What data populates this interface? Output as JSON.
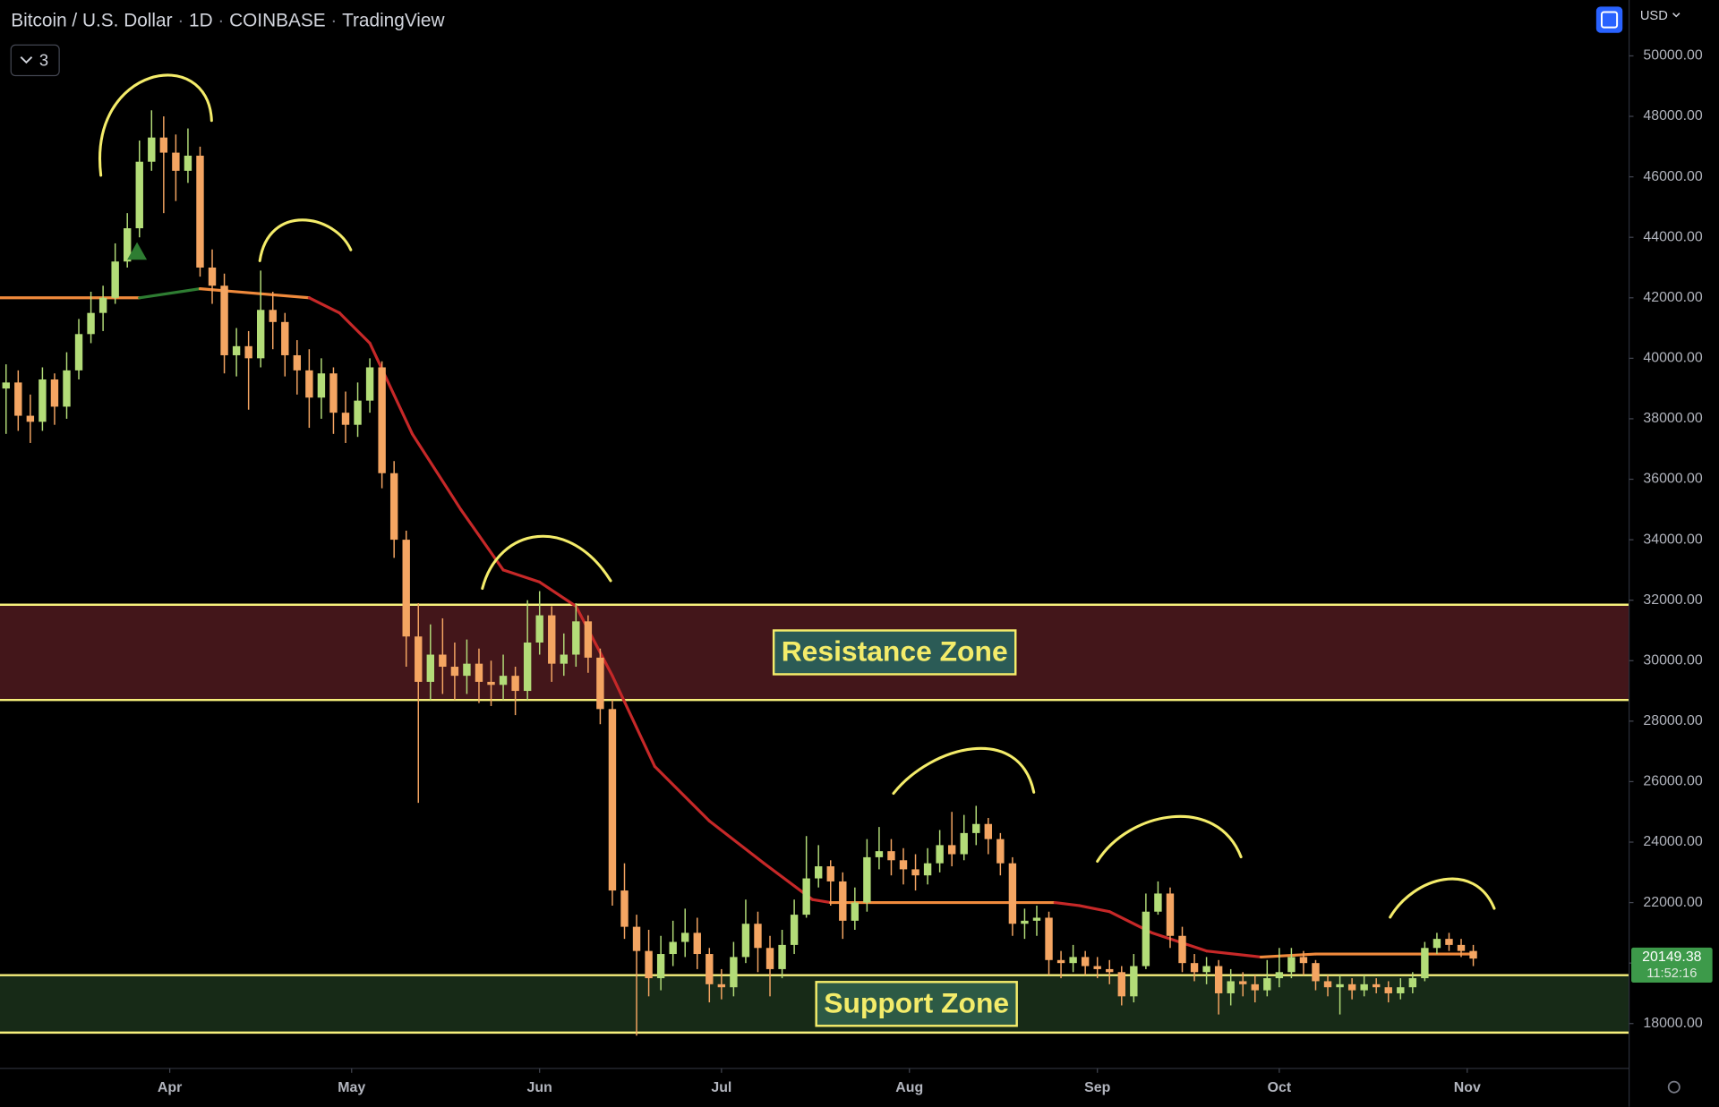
{
  "chart_data": {
    "type": "candlestick",
    "symbol": "Bitcoin / U.S. Dollar",
    "interval": "1D",
    "exchange": "COINBASE",
    "source": "TradingView",
    "badge": "3",
    "currency": "USD",
    "countdown": "11:52:16",
    "up_color": "#b3dc78",
    "down_color": "#f4a562",
    "x": [
      1,
      3,
      5,
      7,
      9,
      11,
      13,
      15,
      17,
      19,
      21,
      23,
      25,
      27,
      29,
      31,
      33,
      35,
      37,
      39,
      41,
      43,
      45,
      47,
      49,
      51,
      53,
      55,
      57,
      59,
      61,
      63,
      65,
      67,
      69,
      71,
      73,
      75,
      77,
      79,
      81,
      83,
      85,
      87,
      89,
      91,
      93,
      95,
      97,
      99,
      101,
      103,
      105,
      107,
      109,
      111,
      113,
      115,
      117,
      119,
      121,
      123,
      125,
      127,
      129,
      131,
      133,
      135,
      137,
      139,
      141,
      143,
      145,
      147,
      149,
      151,
      153,
      155,
      157,
      159,
      161,
      163,
      165,
      167,
      169,
      171,
      173,
      175,
      177,
      179,
      181,
      183,
      185,
      187,
      189,
      191,
      193,
      195,
      197,
      199,
      201,
      203,
      205,
      207,
      209,
      211,
      213,
      215,
      217,
      219,
      221,
      223,
      225,
      227,
      229,
      231,
      233,
      235,
      237,
      239,
      241,
      243
    ],
    "open": [
      39000,
      39200,
      38100,
      37900,
      39300,
      38400,
      39600,
      40800,
      41500,
      42000,
      43200,
      44300,
      46500,
      47300,
      46800,
      46200,
      46700,
      43000,
      42400,
      40100,
      40400,
      40000,
      41600,
      41200,
      40100,
      39600,
      38700,
      39500,
      38200,
      37800,
      38600,
      39700,
      36200,
      34000,
      30800,
      29300,
      30200,
      29800,
      29500,
      29900,
      29300,
      29200,
      29500,
      29000,
      30600,
      31500,
      29900,
      30200,
      31300,
      30100,
      28400,
      22400,
      21200,
      20400,
      19500,
      20300,
      20700,
      21000,
      20300,
      19300,
      19200,
      20200,
      21300,
      20500,
      19800,
      20600,
      21600,
      22800,
      23200,
      22700,
      21400,
      22000,
      23500,
      23700,
      23400,
      23100,
      22900,
      23300,
      23900,
      23600,
      24300,
      24600,
      24100,
      23300,
      21300,
      21400,
      21500,
      20100,
      20000,
      20200,
      19900,
      19800,
      19700,
      18900,
      19900,
      21700,
      22300,
      20900,
      20000,
      19700,
      19900,
      19000,
      19400,
      19300,
      19100,
      19500,
      19700,
      20200,
      20000,
      19400,
      19200,
      19300,
      19100,
      19300,
      19200,
      19000,
      19200,
      19500,
      20500,
      20800,
      20600,
      20400
    ],
    "high": [
      39800,
      39600,
      38800,
      39700,
      39500,
      40200,
      41300,
      42200,
      42400,
      43800,
      44800,
      47200,
      48200,
      48000,
      47400,
      47600,
      47000,
      43600,
      42800,
      41000,
      40900,
      42900,
      42200,
      41500,
      40600,
      40300,
      40000,
      39700,
      38900,
      39200,
      40000,
      39900,
      36600,
      34300,
      31900,
      31200,
      31400,
      30600,
      30700,
      30400,
      30000,
      30200,
      29800,
      32000,
      32300,
      31800,
      30900,
      31900,
      31500,
      30400,
      28700,
      23300,
      21600,
      21100,
      20900,
      21400,
      21800,
      21500,
      20500,
      19800,
      20700,
      22100,
      21700,
      20900,
      21100,
      22100,
      24200,
      23900,
      23400,
      23000,
      22500,
      24100,
      24500,
      24100,
      23800,
      23600,
      23800,
      24400,
      25000,
      24900,
      25200,
      24800,
      24300,
      23500,
      21800,
      21900,
      21700,
      20400,
      20600,
      20400,
      20200,
      20100,
      19900,
      20300,
      22300,
      22700,
      22500,
      21200,
      20300,
      20200,
      20100,
      19800,
      19700,
      19600,
      20100,
      20500,
      20500,
      20400,
      20100,
      19600,
      19600,
      19500,
      19600,
      19500,
      19400,
      19500,
      19700,
      20700,
      21000,
      21000,
      20800,
      20600
    ],
    "low": [
      37500,
      37600,
      37200,
      37600,
      37800,
      38000,
      39300,
      40500,
      40900,
      41800,
      43000,
      44000,
      46200,
      44800,
      45200,
      45800,
      42700,
      41800,
      39500,
      39400,
      38300,
      39700,
      40300,
      39400,
      38800,
      37700,
      38000,
      37500,
      37200,
      37400,
      38200,
      35700,
      33400,
      29800,
      25300,
      28700,
      28900,
      28700,
      28900,
      28600,
      28500,
      28700,
      28200,
      28700,
      30200,
      29300,
      29500,
      29800,
      29600,
      27900,
      21900,
      20800,
      17600,
      18900,
      19100,
      19900,
      20200,
      19800,
      18700,
      18800,
      18900,
      20000,
      19700,
      18900,
      19500,
      20300,
      21500,
      22500,
      21900,
      20800,
      21100,
      21700,
      23100,
      22900,
      22600,
      22400,
      22600,
      23000,
      23200,
      23400,
      23900,
      23600,
      22900,
      20900,
      20800,
      20900,
      19600,
      19500,
      19700,
      19600,
      19500,
      19300,
      18600,
      18700,
      19800,
      21600,
      20500,
      19700,
      19400,
      19300,
      18300,
      18600,
      18900,
      18700,
      18900,
      19200,
      19500,
      19600,
      19100,
      18900,
      18300,
      18800,
      18900,
      19000,
      18700,
      18800,
      19000,
      19400,
      20300,
      20400,
      20200,
      19900
    ],
    "close": [
      39200,
      38100,
      37900,
      39300,
      38400,
      39600,
      40800,
      41500,
      42000,
      43200,
      44300,
      46500,
      47300,
      46800,
      46200,
      46700,
      43000,
      42400,
      40100,
      40400,
      40000,
      41600,
      41200,
      40100,
      39600,
      38700,
      39500,
      38200,
      37800,
      38600,
      39700,
      36200,
      34000,
      30800,
      29300,
      30200,
      29800,
      29500,
      29900,
      29300,
      29200,
      29500,
      29000,
      30600,
      31500,
      29900,
      30200,
      31300,
      30100,
      28400,
      22400,
      21200,
      20400,
      19500,
      20300,
      20700,
      21000,
      20300,
      19300,
      19200,
      20200,
      21300,
      20500,
      19800,
      20600,
      21600,
      22800,
      23200,
      22700,
      21400,
      22000,
      23500,
      23700,
      23400,
      23100,
      22900,
      23300,
      23900,
      23600,
      24300,
      24600,
      24100,
      23300,
      21300,
      21400,
      21500,
      20100,
      20000,
      20200,
      19900,
      19800,
      19700,
      18900,
      19900,
      21700,
      22300,
      20900,
      20000,
      19700,
      19900,
      19000,
      19400,
      19300,
      19100,
      19500,
      19700,
      20200,
      20000,
      19400,
      19200,
      19300,
      19100,
      19300,
      19200,
      19000,
      19200,
      19500,
      20500,
      20800,
      20600,
      20400,
      20149.38
    ],
    "ma": {
      "x": [
        0,
        23,
        33,
        51,
        56,
        61,
        68,
        76,
        83,
        89,
        95,
        101,
        108,
        117,
        126,
        134,
        137,
        174,
        178,
        183,
        190,
        199,
        208,
        217,
        243
      ],
      "values": [
        42000,
        42000,
        42300,
        42000,
        41500,
        40500,
        37500,
        35000,
        33000,
        32600,
        31800,
        29500,
        26500,
        24700,
        23300,
        22100,
        22000,
        22000,
        21900,
        21700,
        21000,
        20400,
        20200,
        20300,
        20300
      ],
      "colors": {
        "up": "#2e7d32",
        "flat": "#f08a3c",
        "down": "#c62828"
      }
    },
    "zones": [
      {
        "label": "Resistance Zone",
        "range": [
          28700,
          31850
        ],
        "color": "#43161a"
      },
      {
        "label": "Support Zone",
        "range": [
          17700,
          19600
        ],
        "color": "#172a17"
      }
    ],
    "xlim": [
      0,
      268.7
    ],
    "ylim": [
      16516,
      51848
    ],
    "xticks": [
      {
        "value": 28,
        "label": "Apr"
      },
      {
        "value": 58,
        "label": "May"
      },
      {
        "value": 89,
        "label": "Jun"
      },
      {
        "value": 119,
        "label": "Jul"
      },
      {
        "value": 150,
        "label": "Aug"
      },
      {
        "value": 181,
        "label": "Sep"
      },
      {
        "value": 211,
        "label": "Oct"
      },
      {
        "value": 242,
        "label": "Nov"
      }
    ],
    "yticks": [
      {
        "value": 18000,
        "label": "18000.00"
      },
      {
        "value": 20000,
        "label": "20000.00"
      },
      {
        "value": 22000,
        "label": "22000.00"
      },
      {
        "value": 24000,
        "label": "24000.00"
      },
      {
        "value": 26000,
        "label": "26000.00"
      },
      {
        "value": 28000,
        "label": "28000.00"
      },
      {
        "value": 30000,
        "label": "30000.00"
      },
      {
        "value": 32000,
        "label": "32000.00"
      },
      {
        "value": 34000,
        "label": "34000.00"
      },
      {
        "value": 36000,
        "label": "36000.00"
      },
      {
        "value": 38000,
        "label": "38000.00"
      },
      {
        "value": 40000,
        "label": "40000.00"
      },
      {
        "value": 42000,
        "label": "42000.00"
      },
      {
        "value": 44000,
        "label": "44000.00"
      },
      {
        "value": 46000,
        "label": "46000.00"
      },
      {
        "value": 48000,
        "label": "48000.00"
      },
      {
        "value": 50000,
        "label": "50000.00"
      }
    ]
  }
}
